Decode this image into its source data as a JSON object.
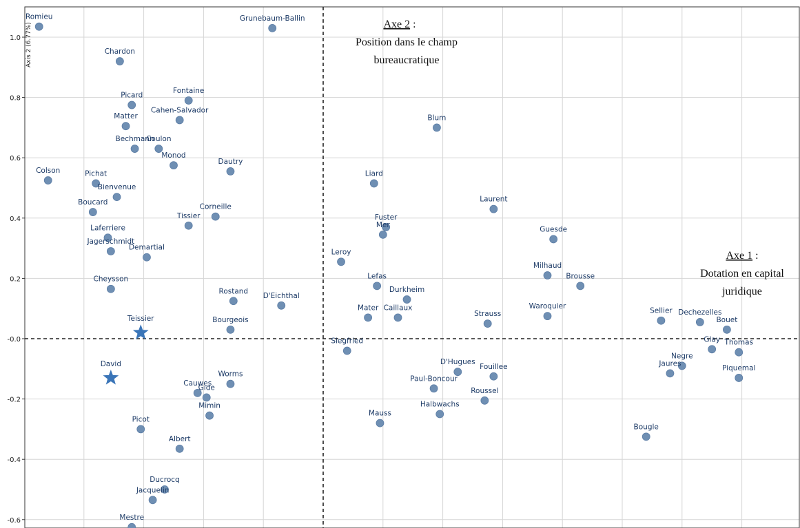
{
  "chart_data": {
    "type": "scatter",
    "xlim": [
      -1.0,
      1.6
    ],
    "ylim": [
      -0.62,
      1.09
    ],
    "grid": true,
    "ylabel": "Axis 2 (6.77%)",
    "yticks": [
      1.0,
      0.8,
      0.6,
      0.4,
      0.2,
      0.0,
      -0.2,
      -0.4,
      -0.6
    ],
    "ytick_labels": [
      "1.0",
      "0.8",
      "0.6",
      "0.4",
      "0.2",
      "-0.0",
      "-0.2",
      "-0.4",
      "-0.6"
    ],
    "xgrid": [
      -0.8,
      -0.6,
      -0.4,
      -0.2,
      0.0,
      0.2,
      0.4,
      0.6,
      0.8,
      1.0,
      1.2,
      1.4
    ],
    "point_color": "#6f8fb3",
    "star_color": "#3a75b8",
    "points": [
      {
        "name": "Romieu",
        "x": -0.95,
        "y": 1.035
      },
      {
        "name": "Grunebaum-Ballin",
        "x": -0.17,
        "y": 1.03
      },
      {
        "name": "Chardon",
        "x": -0.68,
        "y": 0.92
      },
      {
        "name": "Fontaine",
        "x": -0.45,
        "y": 0.79
      },
      {
        "name": "Picard",
        "x": -0.64,
        "y": 0.775
      },
      {
        "name": "Cahen-Salvador",
        "x": -0.48,
        "y": 0.725
      },
      {
        "name": "Matter",
        "x": -0.66,
        "y": 0.705
      },
      {
        "name": "Bechmann",
        "x": -0.63,
        "y": 0.63
      },
      {
        "name": "Coulon",
        "x": -0.55,
        "y": 0.63
      },
      {
        "name": "Monod",
        "x": -0.5,
        "y": 0.575
      },
      {
        "name": "Dautry",
        "x": -0.31,
        "y": 0.555
      },
      {
        "name": "Colson",
        "x": -0.92,
        "y": 0.525
      },
      {
        "name": "Pichat",
        "x": -0.76,
        "y": 0.515
      },
      {
        "name": "Bienvenue",
        "x": -0.69,
        "y": 0.47
      },
      {
        "name": "Boucard",
        "x": -0.77,
        "y": 0.42
      },
      {
        "name": "Corneille",
        "x": -0.36,
        "y": 0.405
      },
      {
        "name": "Tissier",
        "x": -0.45,
        "y": 0.375
      },
      {
        "name": "Laferriere",
        "x": -0.72,
        "y": 0.335
      },
      {
        "name": "Jagerschmidt",
        "x": -0.71,
        "y": 0.29
      },
      {
        "name": "Demartial",
        "x": -0.59,
        "y": 0.27
      },
      {
        "name": "Cheysson",
        "x": -0.71,
        "y": 0.165
      },
      {
        "name": "Rostand",
        "x": -0.3,
        "y": 0.125
      },
      {
        "name": "D'Eichthal",
        "x": -0.14,
        "y": 0.11
      },
      {
        "name": "Bourgeois",
        "x": -0.31,
        "y": 0.03
      },
      {
        "name": "Worms",
        "x": -0.31,
        "y": -0.15
      },
      {
        "name": "Cauwes",
        "x": -0.42,
        "y": -0.18
      },
      {
        "name": "Gide",
        "x": -0.39,
        "y": -0.195
      },
      {
        "name": "Mimin",
        "x": -0.38,
        "y": -0.255
      },
      {
        "name": "Picot",
        "x": -0.61,
        "y": -0.3
      },
      {
        "name": "Albert",
        "x": -0.48,
        "y": -0.365
      },
      {
        "name": "Ducrocq",
        "x": -0.53,
        "y": -0.5
      },
      {
        "name": "Jacquelin",
        "x": -0.57,
        "y": -0.535
      },
      {
        "name": "Mestre",
        "x": -0.64,
        "y": -0.625
      },
      {
        "name": "Blum",
        "x": 0.38,
        "y": 0.7
      },
      {
        "name": "Liard",
        "x": 0.17,
        "y": 0.515
      },
      {
        "name": "Laurent",
        "x": 0.57,
        "y": 0.43
      },
      {
        "name": "Fuster",
        "x": 0.21,
        "y": 0.37
      },
      {
        "name": "Mer",
        "x": 0.2,
        "y": 0.345
      },
      {
        "name": "Guesde",
        "x": 0.77,
        "y": 0.33
      },
      {
        "name": "Leroy",
        "x": 0.06,
        "y": 0.255
      },
      {
        "name": "Milhaud",
        "x": 0.75,
        "y": 0.21
      },
      {
        "name": "Brousse",
        "x": 0.86,
        "y": 0.175
      },
      {
        "name": "Lefas",
        "x": 0.18,
        "y": 0.175
      },
      {
        "name": "Durkheim",
        "x": 0.28,
        "y": 0.13
      },
      {
        "name": "Mater",
        "x": 0.15,
        "y": 0.07
      },
      {
        "name": "Caillaux",
        "x": 0.25,
        "y": 0.07
      },
      {
        "name": "Waroquier",
        "x": 0.75,
        "y": 0.075
      },
      {
        "name": "Strauss",
        "x": 0.55,
        "y": 0.05
      },
      {
        "name": "Sellier",
        "x": 1.13,
        "y": 0.06
      },
      {
        "name": "Dechezelles",
        "x": 1.26,
        "y": 0.055
      },
      {
        "name": "Bouet",
        "x": 1.35,
        "y": 0.03
      },
      {
        "name": "Siegfried",
        "x": 0.08,
        "y": -0.04
      },
      {
        "name": "Thomas",
        "x": 1.39,
        "y": -0.045
      },
      {
        "name": "Glay",
        "x": 1.3,
        "y": -0.035
      },
      {
        "name": "Negre",
        "x": 1.2,
        "y": -0.09
      },
      {
        "name": "Jaures",
        "x": 1.16,
        "y": -0.115
      },
      {
        "name": "Piquemal",
        "x": 1.39,
        "y": -0.13
      },
      {
        "name": "D'Hugues",
        "x": 0.45,
        "y": -0.11
      },
      {
        "name": "Fouillee",
        "x": 0.57,
        "y": -0.125
      },
      {
        "name": "Paul-Boncour",
        "x": 0.37,
        "y": -0.165
      },
      {
        "name": "Roussel",
        "x": 0.54,
        "y": -0.205
      },
      {
        "name": "Halbwachs",
        "x": 0.39,
        "y": -0.25
      },
      {
        "name": "Mauss",
        "x": 0.19,
        "y": -0.28
      },
      {
        "name": "Bougle",
        "x": 1.08,
        "y": -0.325
      }
    ],
    "stars": [
      {
        "name": "Teissier",
        "x": -0.61,
        "y": 0.02
      },
      {
        "name": "David",
        "x": -0.71,
        "y": -0.13
      }
    ]
  },
  "annotations": {
    "axe2_title": "Axe 2",
    "axe2_colon": " :",
    "axe2_line1": "Position dans le champ",
    "axe2_line2": "bureaucratique",
    "axe1_title": "Axe 1",
    "axe1_colon": " :",
    "axe1_line1": "Dotation en capital",
    "axe1_line2": "juridique"
  }
}
